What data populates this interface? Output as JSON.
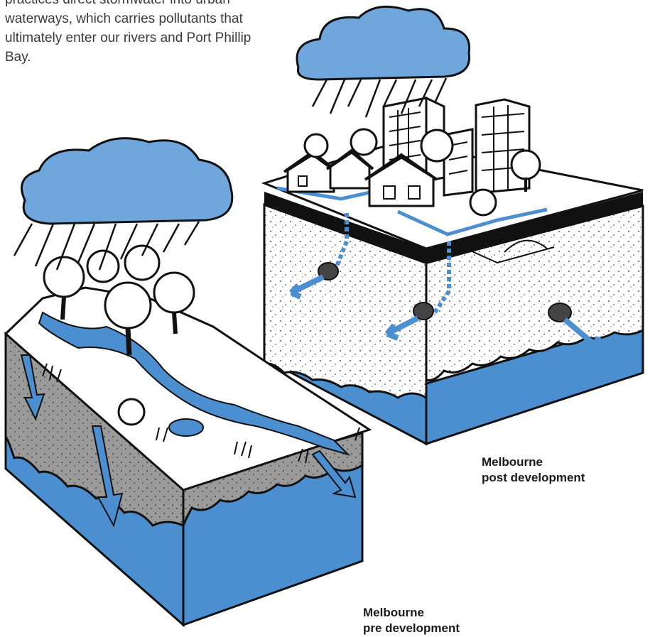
{
  "intro": {
    "lines": [
      "practices direct stormwater into urban",
      "waterways, which carries pollutants that",
      "ultimately enter our rivers and Port Phillip",
      "Bay."
    ]
  },
  "captions": {
    "post": {
      "line1": "Melbourne",
      "line2": "post development"
    },
    "pre": {
      "line1": "Melbourne",
      "line2": "pre development"
    }
  },
  "colors": {
    "water_blue": "#4b8fd1",
    "cloud_blue": "#6fa7dc",
    "soil_grey": "#9a9a9a",
    "outline": "#111111"
  },
  "icons": [
    "rain-cloud-icon",
    "tree-icon",
    "house-icon",
    "building-icon",
    "drain-pipe-icon",
    "flow-arrow-icon"
  ]
}
